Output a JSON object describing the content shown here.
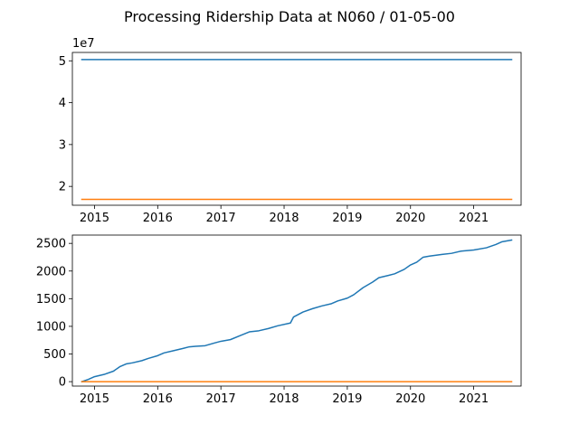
{
  "figure": {
    "title": "Processing Ridership Data at N060 / 01-05-00"
  },
  "chart_data": [
    {
      "type": "line",
      "offset_label": "1e7",
      "xlim": [
        2014.65,
        2021.75
      ],
      "ylim": [
        1.55,
        5.2
      ],
      "x_ticks": [
        2015,
        2016,
        2017,
        2018,
        2019,
        2020,
        2021
      ],
      "x_tick_labels": [
        "2015",
        "2016",
        "2017",
        "2018",
        "2019",
        "2020",
        "2021"
      ],
      "y_ticks": [
        2,
        3,
        4,
        5
      ],
      "y_tick_labels": [
        "2",
        "3",
        "4",
        "5"
      ],
      "series": [
        {
          "color": "#1f77b4",
          "x": [
            2014.8,
            2021.6
          ],
          "y": [
            5.03,
            5.03
          ]
        },
        {
          "color": "#ff7f0e",
          "x": [
            2014.8,
            2021.6
          ],
          "y": [
            1.69,
            1.69
          ]
        }
      ]
    },
    {
      "type": "line",
      "xlim": [
        2014.65,
        2021.75
      ],
      "ylim": [
        -80,
        2650
      ],
      "x_ticks": [
        2015,
        2016,
        2017,
        2018,
        2019,
        2020,
        2021
      ],
      "x_tick_labels": [
        "2015",
        "2016",
        "2017",
        "2018",
        "2019",
        "2020",
        "2021"
      ],
      "y_ticks": [
        0,
        500,
        1000,
        1500,
        2000,
        2500
      ],
      "y_tick_labels": [
        "0",
        "500",
        "1000",
        "1500",
        "2000",
        "2500"
      ],
      "series": [
        {
          "color": "#1f77b4",
          "x": [
            2014.8,
            2014.9,
            2015.0,
            2015.15,
            2015.3,
            2015.4,
            2015.5,
            2015.6,
            2015.75,
            2015.85,
            2016.0,
            2016.1,
            2016.25,
            2016.4,
            2016.5,
            2016.6,
            2016.75,
            2016.9,
            2017.0,
            2017.15,
            2017.3,
            2017.45,
            2017.6,
            2017.75,
            2017.9,
            2018.1,
            2018.15,
            2018.3,
            2018.45,
            2018.6,
            2018.75,
            2018.85,
            2019.0,
            2019.1,
            2019.25,
            2019.4,
            2019.5,
            2019.65,
            2019.75,
            2019.9,
            2020.0,
            2020.1,
            2020.2,
            2020.3,
            2020.5,
            2020.65,
            2020.8,
            2020.9,
            2021.0,
            2021.2,
            2021.35,
            2021.45,
            2021.6
          ],
          "y": [
            0,
            40,
            90,
            130,
            190,
            270,
            320,
            340,
            380,
            420,
            470,
            520,
            560,
            600,
            630,
            640,
            650,
            700,
            730,
            760,
            830,
            900,
            920,
            960,
            1010,
            1060,
            1170,
            1260,
            1320,
            1370,
            1410,
            1460,
            1510,
            1570,
            1700,
            1800,
            1880,
            1920,
            1950,
            2030,
            2110,
            2160,
            2250,
            2270,
            2300,
            2320,
            2360,
            2370,
            2380,
            2420,
            2480,
            2530,
            2560
          ]
        },
        {
          "color": "#ff7f0e",
          "x": [
            2014.8,
            2021.6
          ],
          "y": [
            0,
            0
          ]
        }
      ]
    }
  ]
}
